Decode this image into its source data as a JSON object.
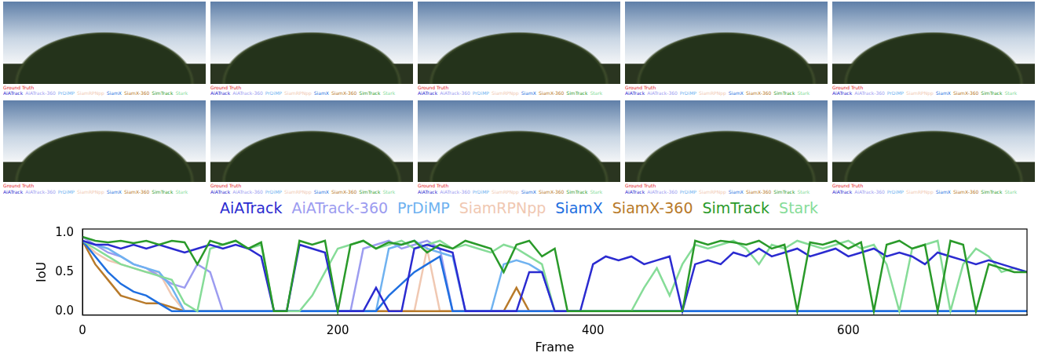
{
  "chart_data": {
    "type": "line",
    "frame_caption": "Ground Truth",
    "ground_truth_color": "#e0201c",
    "x_label": "Frame",
    "y_label": "IoU",
    "xlim": [
      0,
      740
    ],
    "xticks": [
      0,
      200,
      400,
      600
    ],
    "ylim": [
      -0.05,
      1.05
    ],
    "yticks": [
      {
        "value": 0,
        "label": "0.0"
      },
      {
        "value": 0.5,
        "label": "0.5"
      },
      {
        "value": 1,
        "label": "1.0"
      }
    ],
    "grid": false,
    "legend": "top",
    "x": [
      0,
      10,
      20,
      30,
      40,
      50,
      60,
      70,
      80,
      90,
      100,
      110,
      120,
      130,
      140,
      150,
      160,
      170,
      180,
      190,
      200,
      210,
      220,
      230,
      240,
      250,
      260,
      270,
      280,
      290,
      300,
      310,
      320,
      330,
      340,
      350,
      360,
      370,
      380,
      390,
      400,
      410,
      420,
      430,
      440,
      450,
      460,
      470,
      480,
      490,
      500,
      510,
      520,
      530,
      540,
      550,
      560,
      570,
      580,
      590,
      600,
      610,
      620,
      630,
      640,
      650,
      660,
      670,
      680,
      690,
      700,
      710,
      720,
      730,
      740
    ],
    "series": [
      {
        "name": "AiATrack",
        "color": "#2b2bd0",
        "values": [
          0.9,
          0.85,
          0.85,
          0.8,
          0.85,
          0.8,
          0.85,
          0.8,
          0.75,
          0.8,
          0.85,
          0.8,
          0.85,
          0.8,
          0.7,
          0,
          0,
          0.85,
          0.8,
          0.75,
          0,
          0,
          0,
          0.3,
          0,
          0,
          0.8,
          0.85,
          0.8,
          0.75,
          0,
          0,
          0,
          0,
          0,
          0.5,
          0.5,
          0,
          0,
          0,
          0.6,
          0.7,
          0.65,
          0.7,
          0.6,
          0.65,
          0.7,
          0,
          0.6,
          0.65,
          0.6,
          0.75,
          0.7,
          0.8,
          0.7,
          0.75,
          0.8,
          0.7,
          0.75,
          0.8,
          0.7,
          0.75,
          0.8,
          0.7,
          0.75,
          0.7,
          0.6,
          0.75,
          0.7,
          0.65,
          0.6,
          0.65,
          0.6,
          0.55,
          0.5
        ]
      },
      {
        "name": "AiATrack-360",
        "color": "#9c9cf0",
        "values": [
          0.95,
          0.85,
          0.75,
          0.7,
          0.6,
          0.55,
          0.45,
          0.35,
          0.3,
          0.6,
          0.5,
          0,
          0,
          0,
          0,
          0,
          0,
          0,
          0,
          0,
          0,
          0,
          0.8,
          0.85,
          0.9,
          0.8,
          0.85,
          0.9,
          0.8,
          0,
          0,
          0,
          0,
          0,
          0,
          0,
          0,
          0,
          0,
          0,
          0,
          0,
          0,
          0,
          0,
          0,
          0,
          0,
          0,
          0,
          0,
          0,
          0,
          0,
          0,
          0,
          0,
          0,
          0,
          0,
          0,
          0,
          0,
          0,
          0,
          0,
          0,
          0,
          0,
          0,
          0,
          0,
          0,
          0,
          0
        ]
      },
      {
        "name": "PrDiMP",
        "color": "#6fb2f0",
        "values": [
          0.9,
          0.85,
          0.8,
          0.7,
          0.6,
          0.55,
          0.5,
          0.3,
          0,
          0,
          0,
          0,
          0,
          0,
          0,
          0,
          0,
          0,
          0,
          0,
          0,
          0,
          0,
          0,
          0.8,
          0.85,
          0.9,
          0.8,
          0.75,
          0.7,
          0,
          0,
          0,
          0.6,
          0.65,
          0.6,
          0.5,
          0,
          0,
          0,
          0,
          0,
          0,
          0,
          0,
          0,
          0,
          0,
          0,
          0,
          0,
          0,
          0,
          0,
          0,
          0,
          0,
          0,
          0,
          0,
          0,
          0,
          0,
          0,
          0,
          0,
          0,
          0,
          0,
          0,
          0,
          0,
          0,
          0,
          0
        ]
      },
      {
        "name": "SiamRPNpp",
        "color": "#f0c8b2",
        "values": [
          0.9,
          0.75,
          0.65,
          0.6,
          0.55,
          0.5,
          0.5,
          0.2,
          0,
          0,
          0,
          0,
          0,
          0,
          0,
          0,
          0,
          0,
          0,
          0,
          0,
          0,
          0,
          0,
          0,
          0,
          0,
          0.8,
          0,
          0,
          0,
          0,
          0,
          0,
          0,
          0,
          0,
          0,
          0,
          0,
          0,
          0,
          0,
          0,
          0,
          0,
          0,
          0,
          0,
          0,
          0,
          0,
          0,
          0,
          0,
          0,
          0,
          0,
          0,
          0,
          0,
          0,
          0,
          0,
          0,
          0,
          0,
          0,
          0,
          0,
          0,
          0,
          0,
          0,
          0
        ]
      },
      {
        "name": "SiamX",
        "color": "#1f6fe0",
        "values": [
          0.9,
          0.7,
          0.5,
          0.35,
          0.25,
          0.2,
          0.1,
          0,
          0,
          0,
          0,
          0,
          0,
          0,
          0,
          0,
          0,
          0,
          0,
          0,
          0,
          0,
          0,
          0,
          0.2,
          0.35,
          0.5,
          0.6,
          0.7,
          0,
          0,
          0,
          0,
          0,
          0,
          0,
          0,
          0,
          0,
          0,
          0,
          0,
          0,
          0,
          0,
          0,
          0,
          0,
          0,
          0,
          0,
          0,
          0,
          0,
          0,
          0,
          0,
          0,
          0,
          0,
          0,
          0,
          0,
          0,
          0,
          0,
          0,
          0,
          0,
          0,
          0,
          0,
          0,
          0,
          0
        ]
      },
      {
        "name": "SiamX-360",
        "color": "#b87a2a",
        "values": [
          0.9,
          0.6,
          0.4,
          0.2,
          0.15,
          0.1,
          0.1,
          0.05,
          0,
          0,
          0,
          0,
          0,
          0,
          0,
          0,
          0,
          0,
          0,
          0,
          0,
          0,
          0,
          0,
          0,
          0,
          0,
          0,
          0,
          0,
          0,
          0,
          0,
          0,
          0.3,
          0,
          0,
          0,
          0,
          0,
          0,
          0,
          0,
          0,
          0,
          0,
          0,
          0,
          0,
          0,
          0,
          0,
          0,
          0,
          0,
          0,
          0,
          0,
          0,
          0,
          0,
          0,
          0,
          0,
          0,
          0,
          0,
          0,
          0,
          0,
          0,
          0,
          0,
          0,
          0
        ]
      },
      {
        "name": "SimTrack",
        "color": "#2a9a2a",
        "values": [
          0.95,
          0.9,
          0.88,
          0.9,
          0.87,
          0.9,
          0.85,
          0.9,
          0.88,
          0.6,
          0.9,
          0.85,
          0.9,
          0.8,
          0.88,
          0,
          0,
          0.9,
          0.85,
          0.9,
          0,
          0.85,
          0.9,
          0.8,
          0.88,
          0.85,
          0.9,
          0.75,
          0.85,
          0.8,
          0.9,
          0.85,
          0.8,
          0.5,
          0.85,
          0.9,
          0.7,
          0.8,
          0,
          0,
          0,
          0,
          0,
          0,
          0,
          0,
          0,
          0,
          0.9,
          0.85,
          0.9,
          0.88,
          0.85,
          0.9,
          0.8,
          0.85,
          0,
          0.88,
          0.85,
          0.9,
          0.8,
          0.88,
          0,
          0.85,
          0.9,
          0.8,
          0.85,
          0,
          0.9,
          0.85,
          0,
          0.6,
          0.55,
          0.5,
          0.5
        ]
      },
      {
        "name": "Stark",
        "color": "#86dc98",
        "values": [
          0.9,
          0.8,
          0.7,
          0.6,
          0.55,
          0.5,
          0.45,
          0.4,
          0.1,
          0,
          0.8,
          0.85,
          0.9,
          0.8,
          0.85,
          0,
          0,
          0,
          0.2,
          0.5,
          0.8,
          0.85,
          0.9,
          0.8,
          0.85,
          0.9,
          0.8,
          0.85,
          0.9,
          0.8,
          0.85,
          0.8,
          0.75,
          0.85,
          0.8,
          0.7,
          0.6,
          0,
          0,
          0,
          0,
          0,
          0,
          0,
          0.3,
          0.55,
          0.2,
          0.6,
          0.85,
          0.8,
          0.85,
          0.9,
          0.8,
          0.6,
          0.85,
          0.8,
          0.9,
          0.85,
          0.8,
          0.85,
          0.9,
          0.8,
          0.85,
          0.6,
          0,
          0.8,
          0.85,
          0.9,
          0,
          0.6,
          0.8,
          0.7,
          0.5,
          0.55,
          0.5
        ]
      }
    ]
  }
}
